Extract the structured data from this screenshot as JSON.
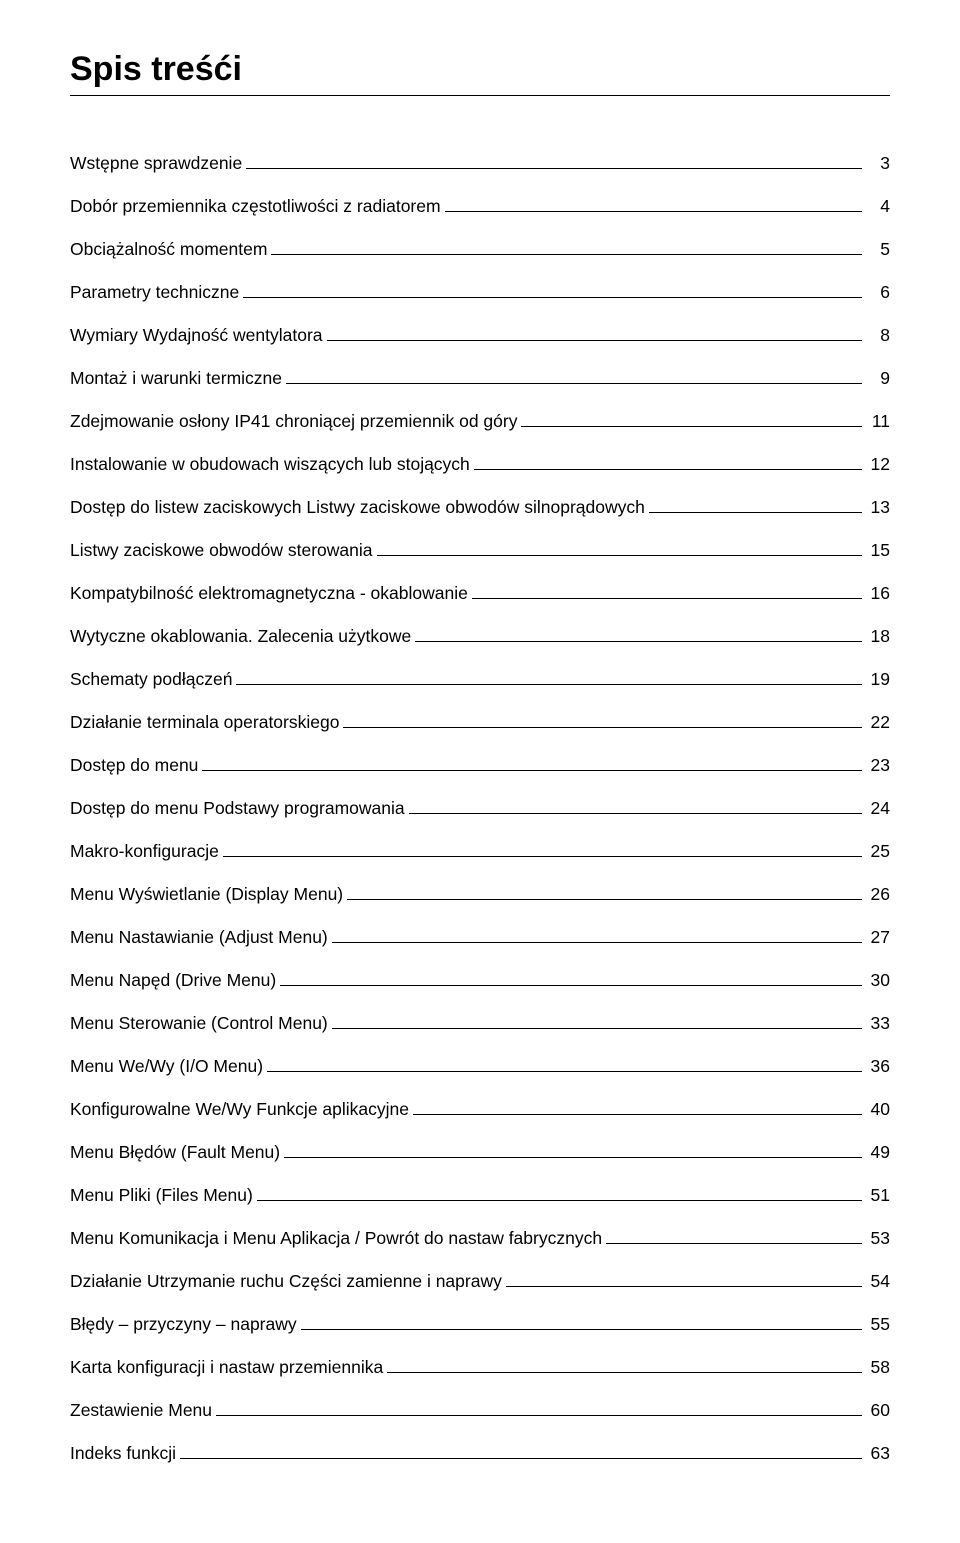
{
  "title": "Spis treśći",
  "toc": [
    {
      "label": "Wstępne sprawdzenie",
      "page": "3"
    },
    {
      "label": "Dobór przemiennika częstotliwości z radiatorem",
      "page": "4"
    },
    {
      "label": "Obciążalność momentem",
      "page": "5"
    },
    {
      "label": "Parametry techniczne",
      "page": "6"
    },
    {
      "label": "Wymiary Wydajność wentylatora",
      "page": "8"
    },
    {
      "label": "Montaż i warunki termiczne",
      "page": "9"
    },
    {
      "label": "Zdejmowanie osłony IP41 chroniącej przemiennik od góry",
      "page": "11"
    },
    {
      "label": "Instalowanie w obudowach wiszących lub stojących",
      "page": "12"
    },
    {
      "label": "Dostęp do listew zaciskowych Listwy zaciskowe obwodów silnoprądowych",
      "page": "13"
    },
    {
      "label": "Listwy zaciskowe obwodów sterowania",
      "page": "15"
    },
    {
      "label": "Kompatybilność elektromagnetyczna  - okablowanie",
      "page": "16"
    },
    {
      "label": "Wytyczne okablowania. Zalecenia użytkowe",
      "page": "18"
    },
    {
      "label": "Schematy podłączeń",
      "page": "19"
    },
    {
      "label": "Działanie terminala operatorskiego",
      "page": "22"
    },
    {
      "label": "Dostęp do menu",
      "page": "23"
    },
    {
      "label": "Dostęp do menu Podstawy programowania",
      "page": "24"
    },
    {
      "label": "Makro-konfiguracje",
      "page": "25"
    },
    {
      "label": "Menu Wyświetlanie (Display Menu)",
      "page": "26"
    },
    {
      "label": "Menu Nastawianie (Adjust Menu)",
      "page": "27"
    },
    {
      "label": "Menu Napęd (Drive Menu)",
      "page": "30"
    },
    {
      "label": "Menu Sterowanie (Control Menu)",
      "page": "33"
    },
    {
      "label": "Menu We/Wy (I/O Menu)",
      "page": "36"
    },
    {
      "label": "Konfigurowalne We/Wy Funkcje aplikacyjne",
      "page": "40"
    },
    {
      "label": "Menu Błędów (Fault Menu)",
      "page": "49"
    },
    {
      "label": "Menu Pliki (Files Menu)",
      "page": "51"
    },
    {
      "label": "Menu Komunikacja i Menu Aplikacja / Powrót do nastaw fabrycznych",
      "page": "53"
    },
    {
      "label": "Działanie Utrzymanie ruchu Części zamienne i naprawy",
      "page": "54"
    },
    {
      "label": "Błędy – przyczyny – naprawy",
      "page": "55"
    },
    {
      "label": "Karta konfiguracji i nastaw przemiennika",
      "page": "58"
    },
    {
      "label": "Zestawienie Menu",
      "page": "60"
    },
    {
      "label": "Indeks funkcji",
      "page": "63"
    }
  ]
}
